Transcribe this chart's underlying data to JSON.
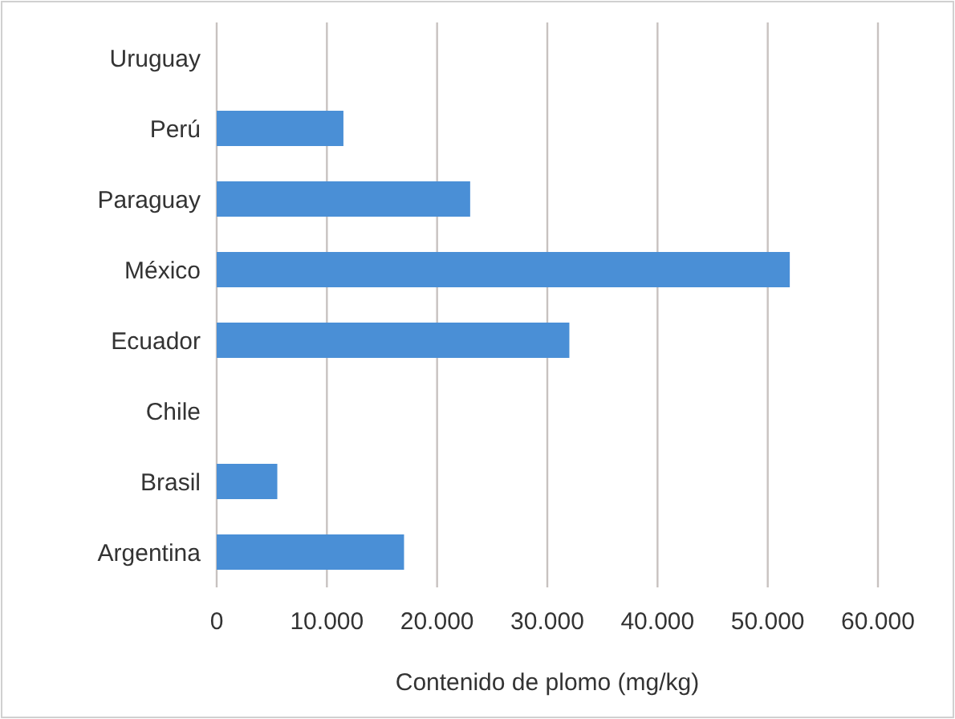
{
  "chart_data": {
    "type": "bar",
    "orientation": "horizontal",
    "xlabel": "Contenido de plomo (mg/kg)",
    "categories": [
      "Uruguay",
      "Perú",
      "Paraguay",
      "México",
      "Ecuador",
      "Chile",
      "Brasil",
      "Argentina"
    ],
    "values": [
      0,
      11500,
      23000,
      52000,
      32000,
      0,
      5500,
      17000
    ],
    "color": "#4a8fd6",
    "xlim": [
      0,
      60000
    ],
    "xticks": [
      0,
      {
        "value": 10000,
        "label": "10.000"
      },
      {
        "value": 20000,
        "label": "20.000"
      },
      {
        "value": 30000,
        "label": "30.000"
      },
      {
        "value": 40000,
        "label": "40.000"
      },
      {
        "value": 50000,
        "label": "50.000"
      },
      {
        "value": 60000,
        "label": "60.000"
      }
    ],
    "grid": "x"
  }
}
